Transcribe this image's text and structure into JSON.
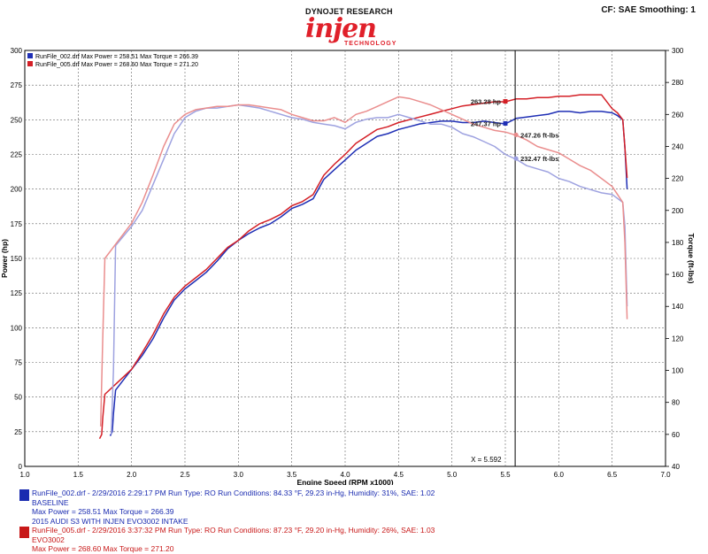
{
  "header": {
    "brand_top": "DYNOJET RESEARCH",
    "brand_logo": "injen",
    "brand_sub": "TECHNOLOGY",
    "settings": "CF: SAE  Smoothing: 1"
  },
  "legend": [
    {
      "text": "RunFile_002.drf Max Power = 258.51     Max Torque = 266.39",
      "color": "#1f2fb5"
    },
    {
      "text": "RunFile_005.drf Max Power = 268.60     Max Torque = 271.20",
      "color": "#d41f26"
    }
  ],
  "cursor": {
    "label": "X = 5.592",
    "x": 5.592
  },
  "annotations": [
    {
      "text": "263.28 hp",
      "x": 5.5,
      "y": 263.28,
      "axis": "left",
      "color": "#d41f26"
    },
    {
      "text": "247.37 hp",
      "x": 5.5,
      "y": 247.37,
      "axis": "left",
      "color": "#1f2fb5"
    },
    {
      "text": "247.26 ft-lbs",
      "x": 5.6,
      "y": 247.26,
      "axis": "right",
      "color": "#e88a8a"
    },
    {
      "text": "232.47 ft-lbs",
      "x": 5.6,
      "y": 232.47,
      "axis": "right",
      "color": "#9a9ee0"
    }
  ],
  "chart_data": {
    "type": "line",
    "title": "",
    "xlabel": "Engine Speed (RPM x1000)",
    "ylabel": "Power (hp)",
    "y2label": "Torque (ft-lbs)",
    "xlim": [
      1.0,
      7.0
    ],
    "ylim": [
      0,
      300
    ],
    "y2lim": [
      40,
      300
    ],
    "x_ticks": [
      "1.0",
      "1.5",
      "2.0",
      "2.5",
      "3.0",
      "3.5",
      "4.0",
      "4.5",
      "5.0",
      "5.5",
      "6.0",
      "6.5",
      "7.0"
    ],
    "y_ticks": [
      "0",
      "25",
      "50",
      "75",
      "100",
      "125",
      "150",
      "175",
      "200",
      "225",
      "250",
      "275",
      "300"
    ],
    "y2_ticks": [
      "40",
      "60",
      "80",
      "100",
      "120",
      "140",
      "160",
      "180",
      "200",
      "220",
      "240",
      "260",
      "280",
      "300"
    ],
    "grid": true,
    "series": [
      {
        "name": "RunFile_002.drf Power",
        "axis": "left",
        "color": "#1f2fb5",
        "x": [
          1.8,
          1.82,
          1.83,
          1.85,
          2.0,
          2.1,
          2.2,
          2.3,
          2.4,
          2.5,
          2.6,
          2.7,
          2.8,
          2.9,
          3.0,
          3.1,
          3.2,
          3.3,
          3.4,
          3.5,
          3.6,
          3.7,
          3.8,
          3.9,
          4.0,
          4.1,
          4.2,
          4.3,
          4.4,
          4.5,
          4.6,
          4.7,
          4.8,
          4.9,
          5.0,
          5.1,
          5.2,
          5.3,
          5.4,
          5.5,
          5.6,
          5.7,
          5.8,
          5.9,
          6.0,
          6.1,
          6.2,
          6.3,
          6.4,
          6.5,
          6.55,
          6.6,
          6.62,
          6.64
        ],
        "y": [
          22,
          25,
          38,
          55,
          70,
          80,
          92,
          107,
          120,
          128,
          134,
          140,
          148,
          157,
          163,
          168,
          172,
          175,
          180,
          186,
          189,
          193,
          207,
          214,
          221,
          228,
          233,
          238,
          240,
          243,
          245,
          247,
          248,
          249,
          249,
          248,
          248,
          249,
          248,
          247,
          251,
          252,
          253,
          254,
          256,
          256,
          255,
          256,
          256,
          255,
          253,
          250,
          230,
          200
        ]
      },
      {
        "name": "RunFile_005.drf Power",
        "axis": "left",
        "color": "#d41f26",
        "x": [
          1.7,
          1.72,
          1.73,
          1.75,
          2.0,
          2.1,
          2.2,
          2.3,
          2.4,
          2.5,
          2.6,
          2.7,
          2.8,
          2.9,
          3.0,
          3.1,
          3.2,
          3.3,
          3.4,
          3.5,
          3.6,
          3.7,
          3.8,
          3.9,
          4.0,
          4.1,
          4.2,
          4.3,
          4.4,
          4.5,
          4.6,
          4.7,
          4.8,
          4.9,
          5.0,
          5.1,
          5.2,
          5.3,
          5.4,
          5.5,
          5.6,
          5.7,
          5.8,
          5.9,
          6.0,
          6.1,
          6.2,
          6.3,
          6.4,
          6.5,
          6.55,
          6.6,
          6.62,
          6.64
        ],
        "y": [
          20,
          23,
          35,
          52,
          70,
          82,
          95,
          110,
          122,
          130,
          136,
          142,
          150,
          158,
          163,
          170,
          175,
          178,
          182,
          188,
          191,
          196,
          210,
          218,
          225,
          233,
          238,
          243,
          245,
          248,
          250,
          252,
          254,
          256,
          258,
          260,
          261,
          262,
          263,
          263,
          265,
          265,
          266,
          266,
          267,
          267,
          268,
          268,
          268,
          258,
          255,
          250,
          230,
          208
        ]
      },
      {
        "name": "RunFile_002.drf Torque",
        "axis": "right",
        "color": "#9ea2e0",
        "x": [
          1.81,
          1.83,
          1.85,
          2.0,
          2.1,
          2.2,
          2.3,
          2.4,
          2.5,
          2.6,
          2.7,
          2.8,
          2.9,
          3.0,
          3.1,
          3.2,
          3.3,
          3.4,
          3.5,
          3.6,
          3.7,
          3.8,
          3.9,
          4.0,
          4.1,
          4.2,
          4.3,
          4.4,
          4.5,
          4.6,
          4.7,
          4.8,
          4.9,
          5.0,
          5.1,
          5.2,
          5.3,
          5.4,
          5.5,
          5.6,
          5.7,
          5.8,
          5.9,
          6.0,
          6.1,
          6.2,
          6.3,
          6.4,
          6.5,
          6.6,
          6.62,
          6.64
        ],
        "y": [
          60,
          100,
          178,
          190,
          200,
          216,
          232,
          248,
          258,
          262,
          264,
          264,
          265,
          266,
          265,
          264,
          262,
          260,
          258,
          257,
          255,
          254,
          253,
          251,
          255,
          257,
          258,
          258,
          260,
          258,
          256,
          254,
          254,
          252,
          248,
          246,
          243,
          240,
          235,
          232,
          228,
          226,
          224,
          220,
          218,
          215,
          213,
          211,
          210,
          205,
          190,
          140
        ]
      },
      {
        "name": "RunFile_005.drf Torque",
        "axis": "right",
        "color": "#ea8e8e",
        "x": [
          1.71,
          1.73,
          1.75,
          2.0,
          2.1,
          2.2,
          2.3,
          2.4,
          2.5,
          2.6,
          2.7,
          2.8,
          2.9,
          3.0,
          3.1,
          3.2,
          3.3,
          3.4,
          3.5,
          3.6,
          3.7,
          3.8,
          3.9,
          4.0,
          4.1,
          4.2,
          4.3,
          4.4,
          4.5,
          4.6,
          4.7,
          4.8,
          4.9,
          5.0,
          5.1,
          5.2,
          5.3,
          5.4,
          5.5,
          5.6,
          5.7,
          5.8,
          5.9,
          6.0,
          6.1,
          6.2,
          6.3,
          6.4,
          6.5,
          6.6,
          6.62,
          6.64
        ],
        "y": [
          65,
          120,
          170,
          192,
          205,
          222,
          240,
          254,
          260,
          263,
          264,
          265,
          265,
          266,
          266,
          265,
          264,
          263,
          260,
          258,
          256,
          256,
          258,
          255,
          260,
          262,
          265,
          268,
          271,
          270,
          268,
          266,
          263,
          260,
          257,
          254,
          252,
          250,
          249,
          247,
          244,
          240,
          238,
          236,
          232,
          228,
          225,
          220,
          215,
          205,
          180,
          132
        ]
      }
    ]
  },
  "footer": [
    {
      "color": "#1a2bb0",
      "lines": [
        "RunFile_002.drf - 2/29/2016 2:29:17 PM  Run Type: RO  Run Conditions: 84.33 °F, 29.23 in-Hg,  Humidity:  31%, SAE: 1.02",
        "BASELINE",
        "Max Power = 258.51  Max Torque = 266.39",
        "2015 AUDI S3 WITH INJEN EVO3002 INTAKE"
      ]
    },
    {
      "color": "#c81818",
      "lines": [
        "RunFile_005.drf - 2/29/2016 3:37:32 PM  Run Type: RO  Run Conditions: 87.23 °F, 29.20 in-Hg,  Humidity:  26%, SAE: 1.03",
        "EVO3002",
        "Max Power = 268.60  Max Torque = 271.20"
      ]
    }
  ]
}
